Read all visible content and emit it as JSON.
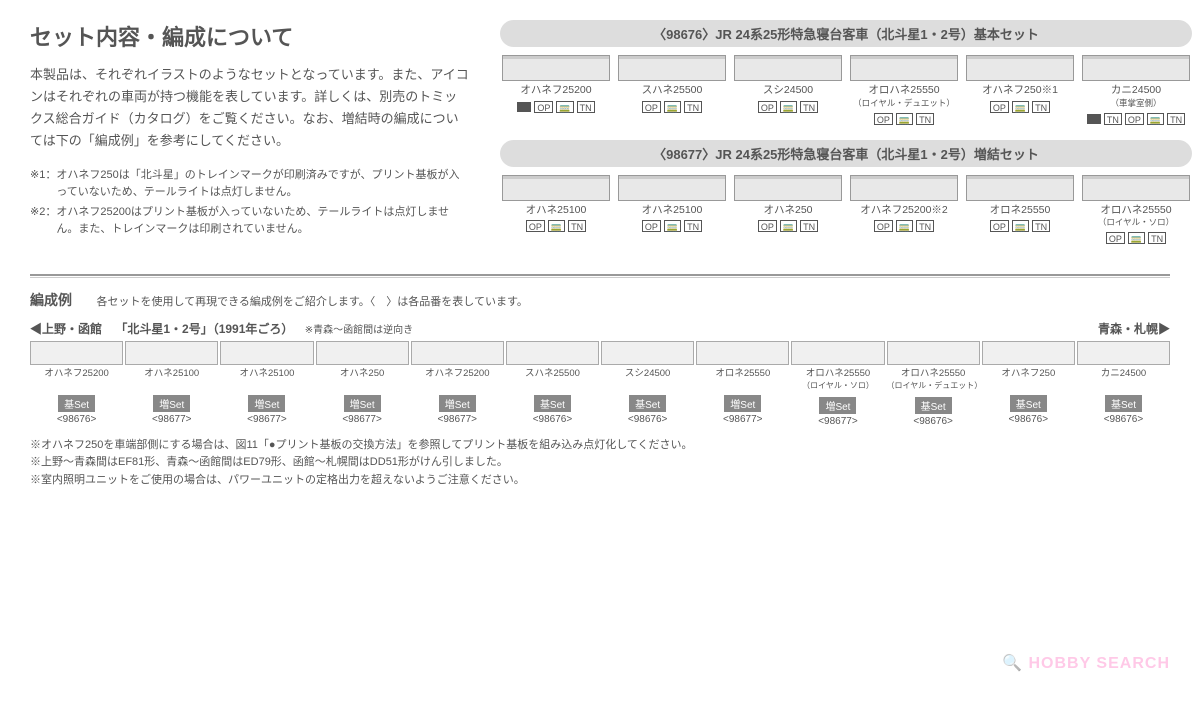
{
  "title": "セット内容・編成について",
  "body_text": "本製品は、それぞれイラストのようなセットとなっています。また、アイコンはそれぞれの車両が持つ機能を表しています。詳しくは、別売のトミックス総合ガイド（カタログ）をご覧ください。なお、増結時の編成については下の「編成例」を参考にしてください。",
  "notes": [
    {
      "prefix": "※1：",
      "text": "オハネフ250は「北斗星」のトレインマークが印刷済みですが、プリント基板が入っていないため、テールライトは点灯しません。"
    },
    {
      "prefix": "※2：",
      "text": "オハネフ25200はプリント基板が入っていないため、テールライトは点灯しません。また、トレインマークは印刷されていません。"
    }
  ],
  "sets": [
    {
      "header": "〈98676〉JR 24系25形特急寝台客車（北斗星1・2号）基本セット",
      "cars": [
        {
          "label": "オハネフ25200",
          "sublabel": "",
          "icons": [
            "black",
            "OP",
            "cab",
            "TN"
          ]
        },
        {
          "label": "スハネ25500",
          "sublabel": "",
          "icons": [
            "OP",
            "cab",
            "TN"
          ]
        },
        {
          "label": "スシ24500",
          "sublabel": "",
          "icons": [
            "OP",
            "cab",
            "TN"
          ]
        },
        {
          "label": "オロハネ25550",
          "sublabel": "（ロイヤル・デュエット）",
          "icons": [
            "OP",
            "cab",
            "TN"
          ]
        },
        {
          "label": "オハネフ250※1",
          "sublabel": "",
          "icons": [
            "OP",
            "cab",
            "TN"
          ]
        },
        {
          "label": "カニ24500",
          "sublabel": "",
          "icons": [
            "black",
            "TN",
            "side",
            "OP",
            "cab",
            "TN"
          ],
          "side": "（車掌室側）"
        }
      ]
    },
    {
      "header": "〈98677〉JR 24系25形特急寝台客車（北斗星1・2号）増結セット",
      "cars": [
        {
          "label": "オハネ25100",
          "sublabel": "",
          "icons": [
            "OP",
            "cab",
            "TN"
          ]
        },
        {
          "label": "オハネ25100",
          "sublabel": "",
          "icons": [
            "OP",
            "cab",
            "TN"
          ]
        },
        {
          "label": "オハネ250",
          "sublabel": "",
          "icons": [
            "OP",
            "cab",
            "TN"
          ]
        },
        {
          "label": "オハネフ25200※2",
          "sublabel": "",
          "icons": [
            "OP",
            "cab",
            "TN"
          ]
        },
        {
          "label": "オロネ25550",
          "sublabel": "",
          "icons": [
            "OP",
            "cab",
            "TN"
          ]
        },
        {
          "label": "オロハネ25550",
          "sublabel": "（ロイヤル・ソロ）",
          "icons": [
            "OP",
            "cab",
            "TN"
          ]
        }
      ]
    }
  ],
  "formation": {
    "title": "編成例",
    "desc": "各セットを使用して再現できる編成例をご紹介します。〈　〉は各品番を表しています。",
    "left_dir": "◀上野・函館",
    "right_dir": "青森・札幌▶",
    "route": "「北斗星1・2号」（1991年ごろ）",
    "route_note": "※青森〜函館間は逆向き",
    "cars": [
      {
        "label": "オハネフ25200",
        "sublabel": "",
        "set": "基Set",
        "code": "<98676>"
      },
      {
        "label": "オハネ25100",
        "sublabel": "",
        "set": "増Set",
        "code": "<98677>"
      },
      {
        "label": "オハネ25100",
        "sublabel": "",
        "set": "増Set",
        "code": "<98677>"
      },
      {
        "label": "オハネ250",
        "sublabel": "",
        "set": "増Set",
        "code": "<98677>"
      },
      {
        "label": "オハネフ25200",
        "sublabel": "",
        "set": "増Set",
        "code": "<98677>"
      },
      {
        "label": "スハネ25500",
        "sublabel": "",
        "set": "基Set",
        "code": "<98676>"
      },
      {
        "label": "スシ24500",
        "sublabel": "",
        "set": "基Set",
        "code": "<98676>"
      },
      {
        "label": "オロネ25550",
        "sublabel": "",
        "set": "増Set",
        "code": "<98677>"
      },
      {
        "label": "オロハネ25550",
        "sublabel": "（ロイヤル・ソロ）",
        "set": "増Set",
        "code": "<98677>"
      },
      {
        "label": "オロハネ25550",
        "sublabel": "（ロイヤル・デュエット）",
        "set": "基Set",
        "code": "<98676>"
      },
      {
        "label": "オハネフ250",
        "sublabel": "",
        "set": "基Set",
        "code": "<98676>"
      },
      {
        "label": "カニ24500",
        "sublabel": "",
        "set": "基Set",
        "code": "<98676>"
      }
    ],
    "bottom_notes": [
      "※オハネフ250を車端部側にする場合は、図11「●プリント基板の交換方法」を参照してプリント基板を組み込み点灯化してください。",
      "※上野〜青森間はEF81形、青森〜函館間はED79形、函館〜札幌間はDD51形がけん引しました。",
      "※室内照明ユニットをご使用の場合は、パワーユニットの定格出力を超えないようご注意ください。"
    ]
  },
  "watermark": "🔍 HOBBY SEARCH"
}
